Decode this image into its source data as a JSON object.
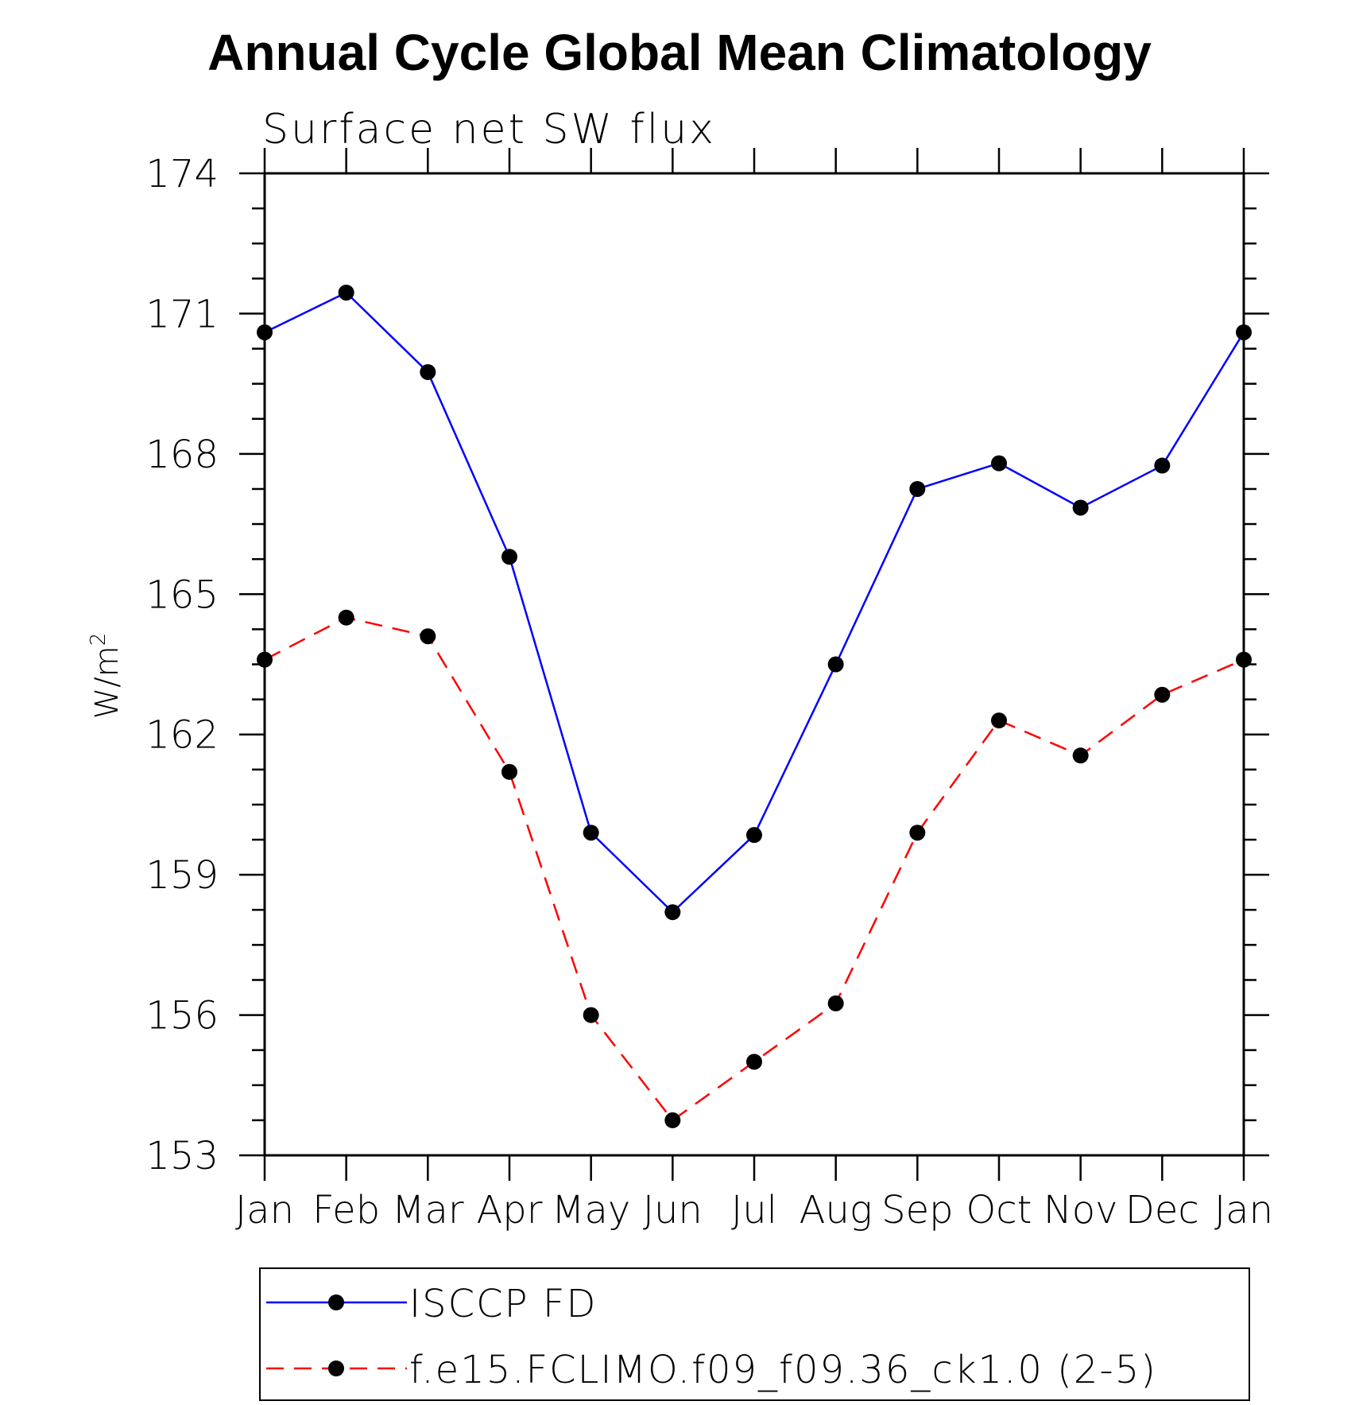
{
  "chart_data": {
    "type": "line",
    "title": "Annual Cycle Global Mean Climatology",
    "subtitle": "Surface net SW flux",
    "ylabel": "W/m",
    "ylabel_sup": "2",
    "categories": [
      "Jan",
      "Feb",
      "Mar",
      "Apr",
      "May",
      "Jun",
      "Jul",
      "Aug",
      "Sep",
      "Oct",
      "Nov",
      "Dec",
      "Jan"
    ],
    "ylim": [
      153,
      174
    ],
    "yticks": [
      "174",
      "171",
      "168",
      "165",
      "162",
      "159",
      "156",
      "153"
    ],
    "ytick_values": [
      174,
      171,
      168,
      165,
      162,
      159,
      156,
      153
    ],
    "grid": false,
    "legend_position": "bottom",
    "series": [
      {
        "name": "ISCCP FD",
        "color": "#0000ff",
        "line_style": "solid",
        "marker": "filled-circle",
        "values": [
          170.6,
          171.45,
          169.75,
          165.8,
          159.9,
          158.2,
          159.85,
          163.5,
          167.25,
          167.8,
          166.85,
          167.75,
          170.6
        ]
      },
      {
        "name": "f.e15.FCLIMO.f09_f09.36_ck1.0 (2-5)",
        "color": "#ff0000",
        "line_style": "dashed",
        "marker": "filled-circle",
        "values": [
          163.6,
          164.5,
          164.1,
          161.2,
          156.0,
          153.75,
          155.0,
          156.25,
          159.9,
          162.3,
          161.55,
          162.85,
          163.6
        ]
      }
    ]
  }
}
